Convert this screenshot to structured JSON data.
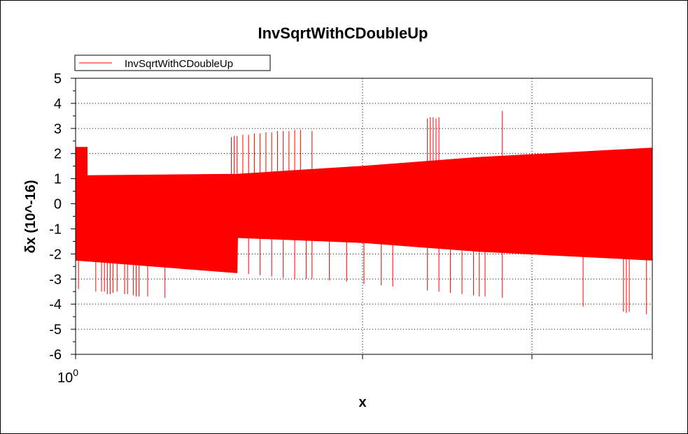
{
  "chart_data": {
    "type": "line",
    "title": "InvSqrtWithCDoubleUp",
    "xlabel": "x",
    "ylabel": "δx (10^-16)",
    "x_tick_label": {
      "base": "10",
      "exponent": "0"
    },
    "y_ticks": [
      5,
      4,
      3,
      2,
      1,
      0,
      -1,
      -2,
      -3,
      -4,
      -5,
      -6
    ],
    "ylim": [
      -6,
      5
    ],
    "x_scale": "log",
    "x_range_fraction": [
      0,
      1
    ],
    "grid": true,
    "legend": {
      "placement": "top-left",
      "entries": [
        "InvSqrtWithCDoubleUp"
      ]
    },
    "series": [
      {
        "name": "InvSqrtWithCDoubleUp",
        "color": "#ff0000",
        "envelope": {
          "note_x": "x as fraction of axis width",
          "upper": [
            [
              0,
              2.25
            ],
            [
              0.02,
              2.25
            ],
            [
              0.02,
              1.12
            ],
            [
              0.28,
              1.18
            ],
            [
              0.5,
              1.5
            ],
            [
              0.7,
              1.85
            ],
            [
              1.0,
              2.22
            ]
          ],
          "lower": [
            [
              0,
              -2.25
            ],
            [
              0.28,
              -2.75
            ],
            [
              0.281,
              -1.35
            ],
            [
              0.5,
              -1.55
            ],
            [
              0.7,
              -1.9
            ],
            [
              1.0,
              -2.25
            ]
          ]
        },
        "spikes": [
          [
            0.005,
            -3.4
          ],
          [
            0.035,
            -3.5
          ],
          [
            0.045,
            -3.5
          ],
          [
            0.05,
            -3.5
          ],
          [
            0.055,
            -3.6
          ],
          [
            0.06,
            -3.6
          ],
          [
            0.065,
            -3.55
          ],
          [
            0.072,
            -3.5
          ],
          [
            0.085,
            -3.6
          ],
          [
            0.09,
            -3.6
          ],
          [
            0.1,
            -3.65
          ],
          [
            0.105,
            -3.7
          ],
          [
            0.11,
            -3.7
          ],
          [
            0.125,
            -3.7
          ],
          [
            0.155,
            -3.75
          ],
          [
            0.27,
            2.65
          ],
          [
            0.275,
            2.7
          ],
          [
            0.28,
            2.7
          ],
          [
            0.29,
            2.75
          ],
          [
            0.3,
            2.75
          ],
          [
            0.31,
            2.8
          ],
          [
            0.32,
            2.8
          ],
          [
            0.33,
            2.85
          ],
          [
            0.34,
            2.85
          ],
          [
            0.35,
            2.9
          ],
          [
            0.36,
            2.9
          ],
          [
            0.37,
            2.9
          ],
          [
            0.38,
            2.95
          ],
          [
            0.39,
            2.95
          ],
          [
            0.41,
            2.9
          ],
          [
            0.3,
            -2.8
          ],
          [
            0.32,
            -2.85
          ],
          [
            0.34,
            -2.9
          ],
          [
            0.36,
            -2.95
          ],
          [
            0.38,
            -3.0
          ],
          [
            0.4,
            -3.0
          ],
          [
            0.41,
            -3.0
          ],
          [
            0.44,
            -3.05
          ],
          [
            0.47,
            -3.1
          ],
          [
            0.5,
            -3.2
          ],
          [
            0.53,
            -3.25
          ],
          [
            0.55,
            -3.3
          ],
          [
            0.61,
            3.4
          ],
          [
            0.615,
            3.45
          ],
          [
            0.62,
            3.45
          ],
          [
            0.625,
            3.4
          ],
          [
            0.63,
            3.45
          ],
          [
            0.61,
            -3.45
          ],
          [
            0.63,
            -3.5
          ],
          [
            0.65,
            -3.55
          ],
          [
            0.67,
            -3.6
          ],
          [
            0.69,
            -3.65
          ],
          [
            0.7,
            -3.7
          ],
          [
            0.71,
            -3.7
          ],
          [
            0.74,
            -3.75
          ],
          [
            0.74,
            3.7
          ],
          [
            0.88,
            -4.1
          ],
          [
            0.95,
            -4.3
          ],
          [
            0.955,
            -4.35
          ],
          [
            0.96,
            -4.3
          ],
          [
            0.99,
            -4.4
          ]
        ]
      }
    ]
  }
}
